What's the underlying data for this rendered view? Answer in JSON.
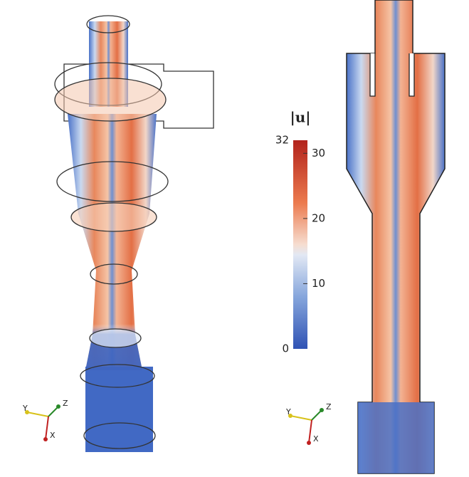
{
  "colorbar": {
    "title": "|u|",
    "min": 0,
    "max": 32,
    "ticks": [
      10,
      20,
      30
    ]
  },
  "triads": [
    {
      "labels": [
        "Y",
        "Z",
        "X"
      ]
    },
    {
      "labels": [
        "Y",
        "Z",
        "X"
      ]
    }
  ]
}
